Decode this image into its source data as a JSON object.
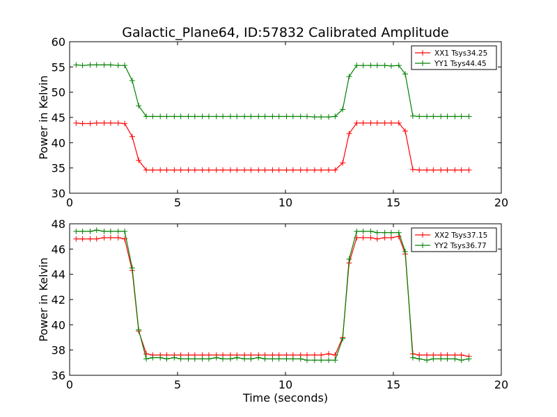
{
  "figure": {
    "title": "Galactic_Plane64, ID:57832 Calibrated Amplitude",
    "background": "#ffffff"
  },
  "chart_data": [
    {
      "type": "line",
      "title": "Galactic_Plane64, ID:57832 Calibrated Amplitude",
      "xlabel": "",
      "ylabel": "Power in Kelvin",
      "xlim": [
        0,
        20
      ],
      "ylim": [
        30,
        60
      ],
      "xticks": [
        0,
        5,
        10,
        15,
        20
      ],
      "yticks": [
        30,
        35,
        40,
        45,
        50,
        55,
        60
      ],
      "grid": false,
      "legend_position": "top-right",
      "x": [
        0.3,
        0.6,
        0.95,
        1.25,
        1.6,
        1.9,
        2.25,
        2.55,
        2.9,
        3.2,
        3.55,
        3.85,
        4.2,
        4.5,
        4.85,
        5.15,
        5.5,
        5.8,
        6.15,
        6.45,
        6.8,
        7.1,
        7.45,
        7.75,
        8.1,
        8.4,
        8.75,
        9.05,
        9.4,
        9.7,
        10.05,
        10.35,
        10.7,
        11.0,
        11.35,
        11.65,
        12.0,
        12.3,
        12.65,
        12.95,
        13.3,
        13.6,
        13.95,
        14.25,
        14.6,
        14.9,
        15.25,
        15.55,
        15.9,
        16.2,
        16.55,
        16.85,
        17.2,
        17.5,
        17.85,
        18.15,
        18.5
      ],
      "series": [
        {
          "name": "XX1 Tsys34.25",
          "color": "#ff0000",
          "values": [
            43.9,
            43.8,
            43.8,
            43.9,
            43.9,
            43.9,
            43.9,
            43.8,
            41.2,
            36.5,
            34.6,
            34.6,
            34.6,
            34.6,
            34.6,
            34.6,
            34.6,
            34.6,
            34.6,
            34.6,
            34.6,
            34.6,
            34.6,
            34.6,
            34.6,
            34.6,
            34.6,
            34.6,
            34.6,
            34.6,
            34.6,
            34.6,
            34.6,
            34.6,
            34.6,
            34.6,
            34.6,
            34.6,
            36.0,
            41.8,
            43.9,
            43.9,
            43.9,
            43.9,
            43.9,
            43.9,
            43.9,
            42.3,
            34.7,
            34.6,
            34.6,
            34.6,
            34.6,
            34.6,
            34.6,
            34.6,
            34.6
          ]
        },
        {
          "name": "YY1 Tsys44.45",
          "color": "#008000",
          "values": [
            55.4,
            55.3,
            55.4,
            55.4,
            55.4,
            55.4,
            55.3,
            55.3,
            52.3,
            47.3,
            45.2,
            45.2,
            45.2,
            45.2,
            45.2,
            45.2,
            45.2,
            45.2,
            45.2,
            45.2,
            45.2,
            45.2,
            45.2,
            45.2,
            45.2,
            45.2,
            45.2,
            45.2,
            45.2,
            45.2,
            45.2,
            45.2,
            45.2,
            45.2,
            45.1,
            45.1,
            45.1,
            45.2,
            46.6,
            53.1,
            55.3,
            55.3,
            55.3,
            55.3,
            55.3,
            55.2,
            55.3,
            53.6,
            45.3,
            45.2,
            45.2,
            45.2,
            45.2,
            45.2,
            45.2,
            45.2,
            45.2
          ]
        }
      ]
    },
    {
      "type": "line",
      "title": "",
      "xlabel": "Time (seconds)",
      "ylabel": "Power in Kelvin",
      "xlim": [
        0,
        20
      ],
      "ylim": [
        36,
        48
      ],
      "xticks": [
        0,
        5,
        10,
        15,
        20
      ],
      "yticks": [
        36,
        38,
        40,
        42,
        44,
        46,
        48
      ],
      "grid": false,
      "legend_position": "top-right",
      "x": [
        0.3,
        0.6,
        0.95,
        1.25,
        1.6,
        1.9,
        2.25,
        2.55,
        2.9,
        3.2,
        3.55,
        3.85,
        4.2,
        4.5,
        4.85,
        5.15,
        5.5,
        5.8,
        6.15,
        6.45,
        6.8,
        7.1,
        7.45,
        7.75,
        8.1,
        8.4,
        8.75,
        9.05,
        9.4,
        9.7,
        10.05,
        10.35,
        10.7,
        11.0,
        11.35,
        11.65,
        12.0,
        12.3,
        12.65,
        12.95,
        13.3,
        13.6,
        13.95,
        14.25,
        14.6,
        14.9,
        15.25,
        15.55,
        15.9,
        16.2,
        16.55,
        16.85,
        17.2,
        17.5,
        17.85,
        18.15,
        18.5
      ],
      "series": [
        {
          "name": "XX2 Tsys37.15",
          "color": "#ff0000",
          "values": [
            46.8,
            46.8,
            46.8,
            46.8,
            46.9,
            46.9,
            46.9,
            46.8,
            44.3,
            39.5,
            37.7,
            37.6,
            37.6,
            37.6,
            37.6,
            37.6,
            37.6,
            37.6,
            37.6,
            37.6,
            37.6,
            37.6,
            37.6,
            37.6,
            37.6,
            37.6,
            37.6,
            37.6,
            37.6,
            37.6,
            37.6,
            37.6,
            37.6,
            37.6,
            37.6,
            37.6,
            37.7,
            37.6,
            39.0,
            44.9,
            46.9,
            46.9,
            46.9,
            46.8,
            46.9,
            46.9,
            47.0,
            45.6,
            37.7,
            37.6,
            37.6,
            37.6,
            37.6,
            37.6,
            37.6,
            37.6,
            37.5
          ]
        },
        {
          "name": "YY2 Tsys36.77",
          "color": "#008000",
          "values": [
            47.4,
            47.4,
            47.4,
            47.5,
            47.4,
            47.4,
            47.4,
            47.4,
            44.5,
            39.6,
            37.3,
            37.4,
            37.4,
            37.3,
            37.4,
            37.3,
            37.3,
            37.3,
            37.3,
            37.3,
            37.4,
            37.3,
            37.3,
            37.4,
            37.3,
            37.3,
            37.4,
            37.3,
            37.3,
            37.3,
            37.3,
            37.3,
            37.3,
            37.2,
            37.2,
            37.2,
            37.2,
            37.2,
            38.9,
            45.2,
            47.4,
            47.4,
            47.4,
            47.3,
            47.3,
            47.3,
            47.3,
            45.8,
            37.4,
            37.3,
            37.2,
            37.3,
            37.3,
            37.3,
            37.3,
            37.2,
            37.3
          ]
        }
      ]
    }
  ]
}
